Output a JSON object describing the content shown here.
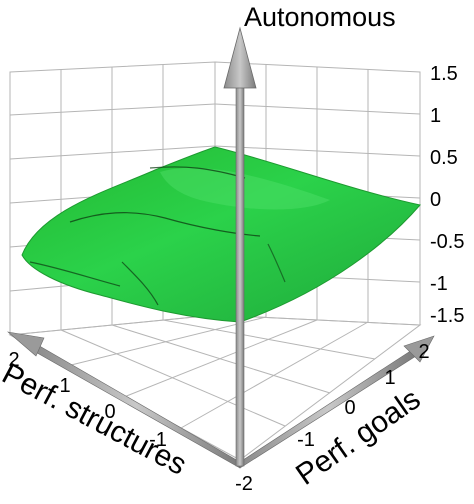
{
  "chart_data": {
    "type": "surface",
    "title": "Autonomous",
    "xlabel": "Perf. structures",
    "ylabel": "Perf. goals",
    "zlabel": "Autonomous",
    "xlim": [
      -2,
      2
    ],
    "ylim": [
      -2,
      2
    ],
    "zlim": [
      -1.5,
      1.5
    ],
    "x_ticks": [
      "2",
      "1",
      "0",
      "-1",
      "-2"
    ],
    "y_ticks": [
      "-1",
      "0",
      "1",
      "2"
    ],
    "z_ticks": [
      "1.5",
      "1",
      "0.5",
      "0",
      "-0.5",
      "-1",
      "-1.5"
    ],
    "grid": true,
    "surface_color": "#27c43a",
    "contour_levels": [
      -0.5,
      0
    ],
    "surface_corners": [
      {
        "x": 2,
        "y": -2,
        "z": -0.6
      },
      {
        "x": 2,
        "y": 2,
        "z": 0.3
      },
      {
        "x": -2,
        "y": 2,
        "z": 0.0
      },
      {
        "x": -2,
        "y": -2,
        "z": -1.2
      }
    ]
  }
}
